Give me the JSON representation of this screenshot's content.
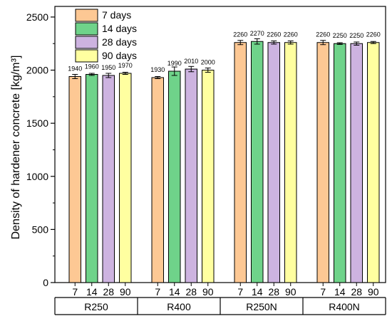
{
  "chart_data": {
    "type": "bar",
    "ylabel": "Density of hardener concrete [kg/m³]",
    "xlabel": "",
    "ylim": [
      0,
      2600
    ],
    "yticks": [
      0,
      500,
      1000,
      1500,
      2000,
      2500
    ],
    "groups": [
      "R250",
      "R400",
      "R250N",
      "R400N"
    ],
    "sub_labels": [
      "7",
      "14",
      "28",
      "90"
    ],
    "series": [
      {
        "name": "7 days",
        "color": "#FDC894",
        "values": [
          1940,
          1930,
          2260,
          2260
        ],
        "errors": [
          20,
          10,
          20,
          20
        ]
      },
      {
        "name": "14 days",
        "color": "#6FD38A",
        "values": [
          1960,
          1990,
          2270,
          2250
        ],
        "errors": [
          10,
          40,
          25,
          8
        ]
      },
      {
        "name": "28 days",
        "color": "#CDB3E0",
        "values": [
          1950,
          2010,
          2260,
          2250
        ],
        "errors": [
          20,
          25,
          15,
          15
        ]
      },
      {
        "name": "90 days",
        "color": "#FFFFA0",
        "values": [
          1970,
          2000,
          2260,
          2260
        ],
        "errors": [
          10,
          20,
          15,
          10
        ]
      }
    ],
    "data_labels": [
      [
        "1940",
        "1930",
        "2260",
        "2260"
      ],
      [
        "1960",
        "1990",
        "2270",
        "2250"
      ],
      [
        "1950",
        "2010",
        "2260",
        "2250"
      ],
      [
        "1970",
        "2000",
        "2260",
        "2260"
      ]
    ],
    "legend_position": "top-left",
    "grid": false
  }
}
